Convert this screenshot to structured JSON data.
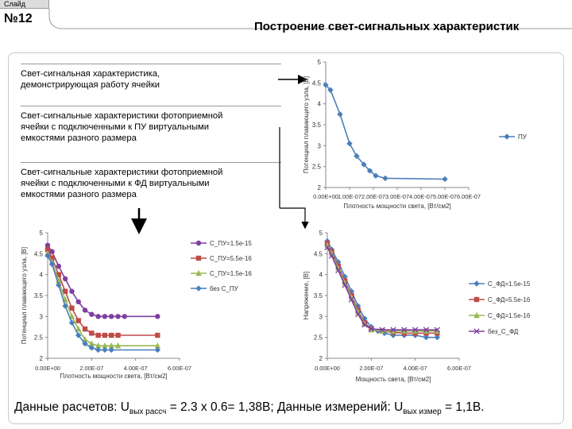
{
  "header": {
    "tab_label": "Слайд",
    "slide_number": "№12",
    "title": "Построение свет-сигнальных характеристик"
  },
  "text_blocks": [
    {
      "lines": [
        "Свет-сигнальная характеристика,",
        "демонстрирующая работу ячейки"
      ]
    },
    {
      "lines": [
        "Свет-сигнальные характеристики фотоприемной",
        "ячейки с подключенными к ПУ виртуальными",
        "емкостями разного размера"
      ]
    },
    {
      "lines": [
        "Свет-сигнальные характеристики фотоприемной",
        "ячейки с подключенными к ФД виртуальными",
        "емкостями разного размера"
      ]
    }
  ],
  "footer": {
    "prefix": "Данные расчетов: U",
    "sub1": "вых рассч",
    "middle": " = 2.3 x 0.6= 1,38В; Данные измерений: U",
    "sub2": "вых измер",
    "suffix": " = 1,1В."
  },
  "colors": {
    "blue": "#4a7ebb",
    "red": "#be4b48",
    "green": "#98b954",
    "purple": "#7d3fa0",
    "arrow": "#000000"
  },
  "chart_data": [
    {
      "type": "line",
      "id": "top",
      "ylabel": "Потенциал плавающего узла, [В]",
      "xlabel": "Плотность мощности света, [Вт/см2]",
      "xtick_labels": [
        "0.00E+00",
        "1.00E-07",
        "2.00E-07",
        "3.00E-07",
        "4.00E-07",
        "5.00E-07",
        "6.00E-07"
      ],
      "ytick_labels": [
        "2",
        "2.5",
        "3",
        "3.5",
        "4",
        "4.5",
        "5"
      ],
      "xlim": [
        0,
        6e-07
      ],
      "ylim": [
        2,
        5
      ],
      "legend_position": "right",
      "series": [
        {
          "name": "ПУ",
          "color": "#4a7ebb",
          "marker": "diamond",
          "x": [
            0,
            2e-08,
            6e-08,
            1e-07,
            1.3e-07,
            1.6e-07,
            1.85e-07,
            2.1e-07,
            2.5e-07,
            5e-07
          ],
          "y": [
            4.45,
            4.33,
            3.75,
            3.05,
            2.75,
            2.55,
            2.4,
            2.28,
            2.22,
            2.2
          ]
        }
      ]
    },
    {
      "type": "line",
      "id": "bottom-left",
      "ylabel": "Потенциал плавающего узла, [В]",
      "xlabel": "Плотность мощности света, [Вт/см2]",
      "xtick_labels": [
        "0.00E+00",
        "2.00E-07",
        "4.00E-07",
        "6.00E-07"
      ],
      "ytick_labels": [
        "2",
        "2.5",
        "3",
        "3.5",
        "4",
        "4.5",
        "5"
      ],
      "xlim": [
        0,
        6e-07
      ],
      "ylim": [
        2,
        5
      ],
      "legend_position": "right",
      "series": [
        {
          "name": "С_ПУ=1.5е-15",
          "color": "#7d3fa0",
          "marker": "circle",
          "x": [
            0,
            2e-08,
            5e-08,
            8e-08,
            1.1e-07,
            1.4e-07,
            1.7e-07,
            2e-07,
            2.3e-07,
            2.6e-07,
            2.9e-07,
            3.2e-07,
            3.5e-07,
            5e-07
          ],
          "y": [
            4.7,
            4.55,
            4.2,
            3.9,
            3.6,
            3.35,
            3.15,
            3.05,
            3.0,
            3.0,
            3.0,
            3.0,
            3.0,
            3.0
          ]
        },
        {
          "name": "С_ПУ=5.5е-16",
          "color": "#be4b48",
          "marker": "square",
          "x": [
            0,
            2e-08,
            5e-08,
            8e-08,
            1.1e-07,
            1.4e-07,
            1.7e-07,
            2e-07,
            2.3e-07,
            2.6e-07,
            2.9e-07,
            3.2e-07,
            5e-07
          ],
          "y": [
            4.6,
            4.4,
            4.0,
            3.6,
            3.2,
            2.9,
            2.7,
            2.6,
            2.55,
            2.55,
            2.55,
            2.55,
            2.55
          ]
        },
        {
          "name": "С_ПУ=1.5е-16",
          "color": "#98b954",
          "marker": "triangle",
          "x": [
            0,
            2e-08,
            5e-08,
            8e-08,
            1.1e-07,
            1.4e-07,
            1.7e-07,
            2e-07,
            2.3e-07,
            2.6e-07,
            2.9e-07,
            3.2e-07,
            5e-07
          ],
          "y": [
            4.5,
            4.3,
            3.85,
            3.4,
            3.0,
            2.7,
            2.45,
            2.35,
            2.3,
            2.3,
            2.3,
            2.3,
            2.3
          ]
        },
        {
          "name": "без С_ПУ",
          "color": "#4a7ebb",
          "marker": "diamond",
          "x": [
            0,
            2e-08,
            5e-08,
            8e-08,
            1.1e-07,
            1.4e-07,
            1.7e-07,
            2e-07,
            2.3e-07,
            2.6e-07,
            2.9e-07,
            5e-07
          ],
          "y": [
            4.45,
            4.25,
            3.75,
            3.25,
            2.85,
            2.55,
            2.35,
            2.25,
            2.2,
            2.2,
            2.2,
            2.2
          ]
        }
      ]
    },
    {
      "type": "line",
      "id": "bottom-right",
      "ylabel": "Напряжение, [В]",
      "xlabel": "Мощность света, [Вт/см2]",
      "xtick_labels": [
        "0.00E+00",
        "2.00E-07",
        "4.00E-07",
        "6.00E-07"
      ],
      "ytick_labels": [
        "2",
        "2.5",
        "3",
        "3.5",
        "4",
        "4.5",
        "5"
      ],
      "xlim": [
        0,
        6e-07
      ],
      "ylim": [
        2,
        5
      ],
      "legend_position": "right",
      "series": [
        {
          "name": "С_ФД=1.5е-15",
          "color": "#4a7ebb",
          "marker": "diamond",
          "x": [
            0,
            2e-08,
            5e-08,
            8e-08,
            1.1e-07,
            1.4e-07,
            1.7e-07,
            2e-07,
            2.3e-07,
            2.6e-07,
            3e-07,
            3.5e-07,
            4e-07,
            4.5e-07,
            5e-07
          ],
          "y": [
            4.8,
            4.6,
            4.3,
            3.95,
            3.6,
            3.25,
            2.95,
            2.75,
            2.65,
            2.6,
            2.55,
            2.55,
            2.55,
            2.5,
            2.5
          ]
        },
        {
          "name": "С_ФД=5.5е-16",
          "color": "#be4b48",
          "marker": "square",
          "x": [
            0,
            2e-08,
            5e-08,
            8e-08,
            1.1e-07,
            1.4e-07,
            1.7e-07,
            2e-07,
            2.5e-07,
            3e-07,
            3.5e-07,
            4e-07,
            4.5e-07,
            5e-07
          ],
          "y": [
            4.75,
            4.55,
            4.2,
            3.85,
            3.5,
            3.15,
            2.85,
            2.7,
            2.65,
            2.62,
            2.6,
            2.6,
            2.6,
            2.6
          ]
        },
        {
          "name": "С_ФД=1.5е-16",
          "color": "#98b954",
          "marker": "triangle",
          "x": [
            0,
            2e-08,
            5e-08,
            8e-08,
            1.1e-07,
            1.4e-07,
            1.7e-07,
            2e-07,
            2.5e-07,
            3e-07,
            3.5e-07,
            4e-07,
            4.5e-07,
            5e-07
          ],
          "y": [
            4.7,
            4.5,
            4.15,
            3.8,
            3.45,
            3.1,
            2.82,
            2.68,
            2.65,
            2.65,
            2.65,
            2.65,
            2.65,
            2.65
          ]
        },
        {
          "name": "без_С_ФД",
          "color": "#7d3fa0",
          "marker": "x",
          "x": [
            0,
            2e-08,
            5e-08,
            8e-08,
            1.1e-07,
            1.4e-07,
            1.7e-07,
            2e-07,
            2.5e-07,
            3e-07,
            3.5e-07,
            4e-07,
            4.5e-07,
            5e-07
          ],
          "y": [
            4.65,
            4.45,
            4.1,
            3.75,
            3.4,
            3.05,
            2.8,
            2.7,
            2.68,
            2.68,
            2.68,
            2.68,
            2.68,
            2.68
          ]
        }
      ]
    }
  ]
}
